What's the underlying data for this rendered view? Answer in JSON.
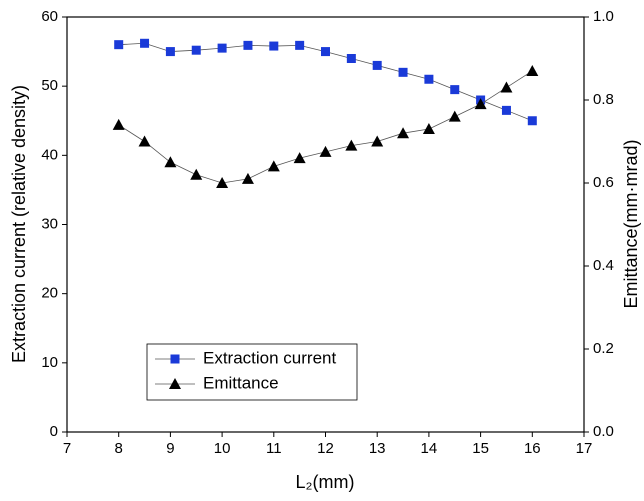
{
  "chart_data": {
    "type": "line",
    "x_label": "L₂(mm)",
    "y_label": "Extraction current (relative density)",
    "y2_label": "Emittance(mm·mrad)",
    "x": [
      8,
      8.5,
      9,
      9.5,
      10,
      10.5,
      11,
      11.5,
      12,
      12.5,
      13,
      13.5,
      14,
      14.5,
      15,
      15.5,
      16
    ],
    "series": [
      {
        "name": "Extraction current",
        "color": "#1a3ad8",
        "marker": "square",
        "values": [
          56,
          56.2,
          55,
          55.2,
          55.5,
          55.9,
          55.8,
          55.9,
          55,
          54,
          53,
          52,
          51,
          49.5,
          48,
          46.5,
          45
        ]
      },
      {
        "name": "Emittance",
        "color": "#000000",
        "marker": "triangle",
        "axis": "y2",
        "values": [
          0.74,
          0.7,
          0.65,
          0.62,
          0.6,
          0.61,
          0.64,
          0.66,
          0.675,
          0.69,
          0.7,
          0.72,
          0.73,
          0.76,
          0.79,
          0.83,
          0.87
        ]
      }
    ],
    "xlim": [
      7,
      17
    ],
    "xticks": [
      7,
      8,
      9,
      10,
      11,
      12,
      13,
      14,
      15,
      16,
      17
    ],
    "ylim": [
      0,
      60
    ],
    "yticks": [
      0,
      10,
      20,
      30,
      40,
      50,
      60
    ],
    "y2lim": [
      0,
      1
    ],
    "y2ticks": [
      {
        "value": 0,
        "label": "0.0"
      },
      0.2,
      0.4,
      0.6,
      0.8,
      {
        "value": 1,
        "label": "1.0"
      }
    ],
    "legend": "lower left"
  }
}
